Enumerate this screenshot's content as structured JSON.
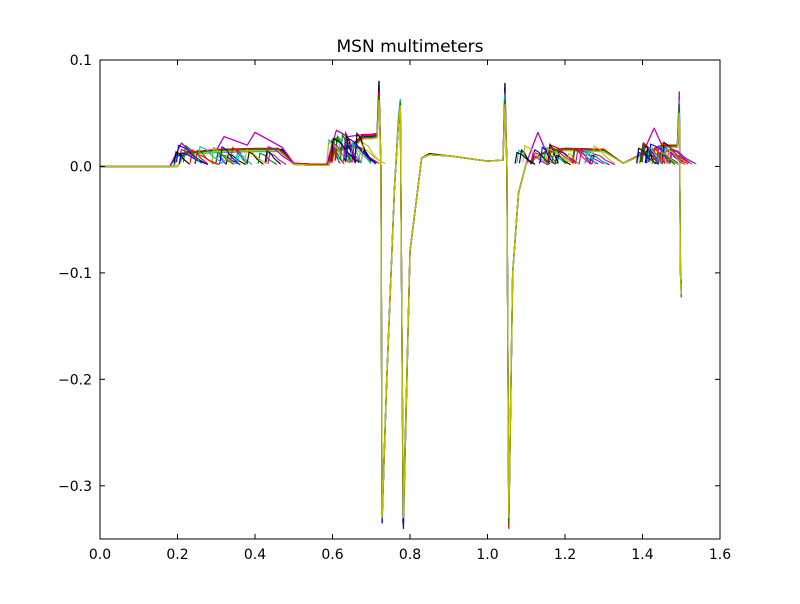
{
  "chart_data": {
    "type": "line",
    "title": "MSN multimeters",
    "xlabel": "",
    "ylabel": "",
    "xlim": [
      0.0,
      1.6
    ],
    "ylim": [
      -0.35,
      0.1
    ],
    "grid": false,
    "legend": "none",
    "x_ticks": [
      0.0,
      0.2,
      0.4,
      0.6,
      0.8,
      1.0,
      1.2,
      1.4,
      1.6
    ],
    "x_tick_labels": [
      "0.0",
      "0.2",
      "0.4",
      "0.6",
      "0.8",
      "1.0",
      "1.2",
      "1.4",
      "1.6"
    ],
    "y_ticks": [
      0.1,
      0.0,
      -0.1,
      -0.2,
      -0.3
    ],
    "y_tick_labels": [
      "0.1",
      "0.0",
      "−0.1",
      "−0.2",
      "−0.3"
    ],
    "series_colors": [
      "#0000ff",
      "#008000",
      "#ff0000",
      "#00bfbf",
      "#bf00bf",
      "#bfbf00",
      "#000000"
    ],
    "series": [
      {
        "color": "#000000",
        "x": [
          0.0,
          0.18,
          0.2,
          0.3,
          0.4,
          0.47,
          0.5,
          0.55,
          0.585,
          0.6,
          0.65,
          0.68,
          0.7,
          0.715,
          0.72,
          0.725,
          0.728,
          0.74,
          0.76,
          0.77,
          0.775,
          0.78,
          0.782,
          0.8,
          0.83,
          0.85,
          0.9,
          1.0,
          1.04,
          1.045,
          1.05,
          1.055,
          1.065,
          1.08,
          1.1,
          1.15,
          1.2,
          1.3,
          1.35,
          1.4,
          1.45,
          1.49,
          1.495,
          1.498,
          1.5
        ],
        "y": [
          0.0,
          0.0,
          0.012,
          0.015,
          0.016,
          0.016,
          0.003,
          0.002,
          0.002,
          0.015,
          0.02,
          0.03,
          0.03,
          0.031,
          0.08,
          0.0,
          -0.33,
          -0.2,
          -0.02,
          0.04,
          0.06,
          -0.2,
          -0.335,
          -0.08,
          0.008,
          0.012,
          0.01,
          0.005,
          0.006,
          0.078,
          0.0,
          -0.335,
          -0.1,
          -0.025,
          0.003,
          0.014,
          0.017,
          0.016,
          0.003,
          0.012,
          0.02,
          0.02,
          0.06,
          -0.1,
          -0.11
        ]
      },
      {
        "color": "#bf00bf",
        "x": [
          0.0,
          0.18,
          0.21,
          0.24,
          0.3,
          0.32,
          0.38,
          0.4,
          0.47,
          0.5,
          0.55,
          0.585,
          0.61,
          0.64,
          0.68,
          0.7,
          0.715,
          0.72,
          0.725,
          0.728,
          0.74,
          0.76,
          0.77,
          0.775,
          0.78,
          0.783,
          0.8,
          0.83,
          0.85,
          0.9,
          1.0,
          1.04,
          1.045,
          1.05,
          1.055,
          1.065,
          1.08,
          1.1,
          1.13,
          1.15,
          1.2,
          1.3,
          1.35,
          1.4,
          1.43,
          1.45,
          1.49,
          1.495,
          1.498,
          1.5
        ],
        "y": [
          0.0,
          0.0,
          0.022,
          0.012,
          0.015,
          0.028,
          0.02,
          0.032,
          0.018,
          0.003,
          0.002,
          0.002,
          0.034,
          0.028,
          0.03,
          0.03,
          0.031,
          0.07,
          0.0,
          -0.325,
          -0.2,
          -0.02,
          0.04,
          0.055,
          -0.2,
          -0.33,
          -0.08,
          0.008,
          0.011,
          0.01,
          0.005,
          0.006,
          0.07,
          0.0,
          -0.33,
          -0.1,
          -0.025,
          0.003,
          0.032,
          0.015,
          0.017,
          0.016,
          0.003,
          0.012,
          0.036,
          0.02,
          0.02,
          0.07,
          -0.1,
          -0.115
        ]
      },
      {
        "color": "#0000ff",
        "x": [
          0.0,
          0.19,
          0.2,
          0.3,
          0.4,
          0.47,
          0.5,
          0.55,
          0.59,
          0.6,
          0.65,
          0.68,
          0.7,
          0.715,
          0.72,
          0.725,
          0.728,
          0.74,
          0.76,
          0.77,
          0.775,
          0.78,
          0.783,
          0.8,
          0.83,
          0.85,
          0.9,
          1.0,
          1.04,
          1.045,
          1.05,
          1.055,
          1.065,
          1.08,
          1.1,
          1.15,
          1.2,
          1.3,
          1.35,
          1.4,
          1.45,
          1.49,
          1.495,
          1.498,
          1.5
        ],
        "y": [
          0.0,
          0.0,
          0.01,
          0.014,
          0.015,
          0.015,
          0.002,
          0.001,
          0.001,
          0.014,
          0.018,
          0.028,
          0.028,
          0.029,
          0.06,
          0.0,
          -0.335,
          -0.2,
          -0.02,
          0.04,
          0.058,
          -0.2,
          -0.34,
          -0.08,
          0.008,
          0.011,
          0.01,
          0.005,
          0.006,
          0.065,
          0.0,
          -0.33,
          -0.1,
          -0.025,
          0.003,
          0.013,
          0.016,
          0.015,
          0.003,
          0.011,
          0.019,
          0.019,
          0.055,
          -0.1,
          -0.11
        ]
      },
      {
        "color": "#00bfbf",
        "x": [
          0.0,
          0.19,
          0.2,
          0.3,
          0.4,
          0.47,
          0.5,
          0.55,
          0.59,
          0.6,
          0.65,
          0.68,
          0.7,
          0.715,
          0.72,
          0.725,
          0.728,
          0.74,
          0.76,
          0.77,
          0.775,
          0.78,
          0.783,
          0.8,
          0.83,
          0.85,
          0.9,
          1.0,
          1.04,
          1.045,
          1.05,
          1.055,
          1.065,
          1.08,
          1.1,
          1.15,
          1.2,
          1.3,
          1.35,
          1.4,
          1.45,
          1.49,
          1.495,
          1.498,
          1.5
        ],
        "y": [
          0.0,
          0.0,
          0.011,
          0.013,
          0.014,
          0.014,
          0.002,
          0.001,
          0.001,
          0.013,
          0.017,
          0.026,
          0.026,
          0.027,
          0.065,
          0.0,
          -0.325,
          -0.2,
          -0.02,
          0.045,
          0.063,
          -0.2,
          -0.33,
          -0.08,
          0.008,
          0.011,
          0.01,
          0.005,
          0.006,
          0.068,
          0.0,
          -0.335,
          -0.1,
          -0.025,
          0.003,
          0.012,
          0.015,
          0.014,
          0.003,
          0.011,
          0.018,
          0.018,
          0.062,
          -0.1,
          -0.12
        ]
      },
      {
        "color": "#ff0000",
        "x": [
          0.0,
          0.2,
          0.22,
          0.3,
          0.4,
          0.46,
          0.5,
          0.55,
          0.59,
          0.61,
          0.65,
          0.68,
          0.7,
          0.715,
          0.72,
          0.725,
          0.728,
          0.74,
          0.76,
          0.77,
          0.775,
          0.78,
          0.783,
          0.8,
          0.83,
          0.85,
          0.9,
          1.0,
          1.04,
          1.045,
          1.05,
          1.055,
          1.065,
          1.08,
          1.1,
          1.15,
          1.2,
          1.3,
          1.35,
          1.4,
          1.45,
          1.49,
          1.495,
          1.498,
          1.5
        ],
        "y": [
          0.0,
          0.0,
          0.013,
          0.016,
          0.017,
          0.017,
          0.003,
          0.002,
          0.002,
          0.016,
          0.019,
          0.029,
          0.029,
          0.03,
          0.07,
          0.0,
          -0.33,
          -0.2,
          -0.02,
          0.04,
          0.058,
          -0.2,
          -0.33,
          -0.08,
          0.008,
          0.011,
          0.01,
          0.005,
          0.006,
          0.06,
          0.0,
          -0.34,
          -0.1,
          -0.025,
          0.003,
          0.014,
          0.017,
          0.016,
          0.003,
          0.012,
          0.02,
          0.02,
          0.05,
          -0.1,
          -0.11
        ]
      },
      {
        "color": "#008000",
        "x": [
          0.0,
          0.2,
          0.22,
          0.3,
          0.4,
          0.46,
          0.5,
          0.55,
          0.59,
          0.61,
          0.65,
          0.68,
          0.7,
          0.715,
          0.72,
          0.725,
          0.728,
          0.74,
          0.76,
          0.77,
          0.775,
          0.78,
          0.783,
          0.8,
          0.83,
          0.85,
          0.9,
          1.0,
          1.04,
          1.045,
          1.05,
          1.055,
          1.065,
          1.08,
          1.1,
          1.15,
          1.2,
          1.3,
          1.35,
          1.4,
          1.45,
          1.49,
          1.495,
          1.498,
          1.5
        ],
        "y": [
          0.0,
          0.0,
          0.012,
          0.015,
          0.016,
          0.016,
          0.002,
          0.001,
          0.001,
          0.015,
          0.018,
          0.027,
          0.027,
          0.028,
          0.066,
          0.0,
          -0.33,
          -0.2,
          -0.02,
          0.042,
          0.06,
          -0.2,
          -0.33,
          -0.08,
          0.008,
          0.011,
          0.01,
          0.005,
          0.006,
          0.062,
          0.0,
          -0.335,
          -0.1,
          -0.025,
          0.003,
          0.013,
          0.016,
          0.015,
          0.003,
          0.011,
          0.019,
          0.019,
          0.058,
          -0.1,
          -0.123
        ]
      },
      {
        "color": "#bfbf00",
        "x": [
          0.0,
          0.2,
          0.22,
          0.3,
          0.4,
          0.46,
          0.5,
          0.55,
          0.59,
          0.61,
          0.65,
          0.68,
          0.7,
          0.715,
          0.72,
          0.725,
          0.728,
          0.74,
          0.76,
          0.77,
          0.775,
          0.78,
          0.783,
          0.8,
          0.83,
          0.85,
          0.9,
          1.0,
          1.04,
          1.045,
          1.05,
          1.055,
          1.065,
          1.08,
          1.1,
          1.15,
          1.2,
          1.3,
          1.35,
          1.4,
          1.45,
          1.49,
          1.495,
          1.498,
          1.5
        ],
        "y": [
          0.0,
          0.0,
          0.011,
          0.014,
          0.015,
          0.015,
          0.002,
          0.001,
          0.001,
          0.014,
          0.017,
          0.026,
          0.026,
          0.027,
          0.062,
          0.0,
          -0.33,
          -0.2,
          -0.02,
          0.04,
          0.057,
          -0.2,
          -0.33,
          -0.08,
          0.008,
          0.011,
          0.01,
          0.005,
          0.006,
          0.058,
          0.0,
          -0.33,
          -0.1,
          -0.025,
          0.003,
          0.012,
          0.015,
          0.014,
          0.003,
          0.011,
          0.018,
          0.018,
          0.05,
          -0.1,
          -0.12
        ]
      }
    ]
  }
}
